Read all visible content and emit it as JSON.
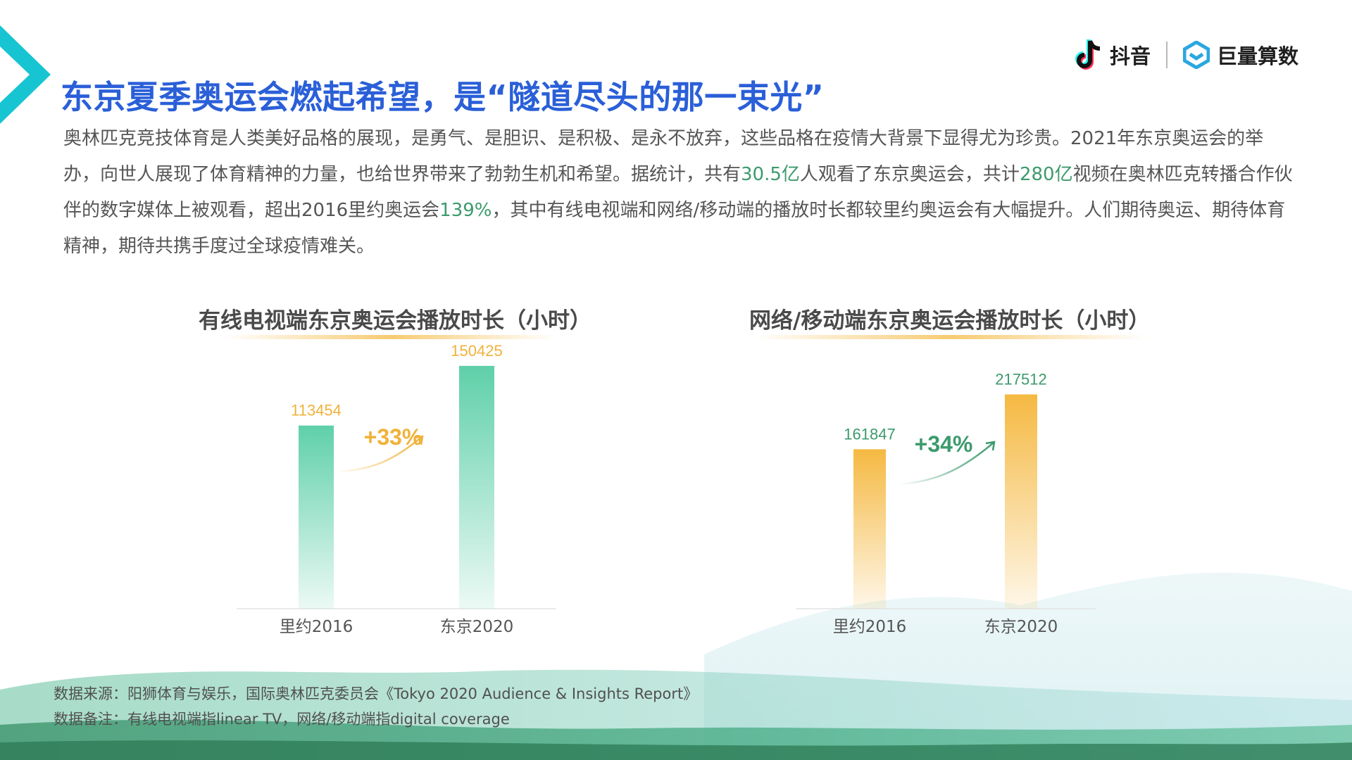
{
  "title": "东京夏季奥运会燃起希望，是“隧道尽头的那一束光”",
  "intro": {
    "p1": "奥林匹克竞技体育是人类美好品格的展现，是勇气、是胆识、是积极、是永不放弃，这些品格在疫情大背景下显得尤为珍贵。2021年东京奥运会的举办，向世人展现了体育精神的力量，也给世界带来了勃勃生机和希望。据统计，共有",
    "h1": "30.5亿",
    "p2": "人观看了东京奥运会，共计",
    "h2": "280亿",
    "p3": "视频在奥林匹克转播合作伙伴的数字媒体上被观看，超出2016里约奥运会",
    "h3": "139%",
    "p4": "，其中有线电视端和网络/移动端的播放时长都较里约奥运会有大幅提升。人们期待奥运、期待体育精神，期待共携手度过全球疫情难关。"
  },
  "logos": {
    "douyin": "抖音",
    "juliang": "巨量算数"
  },
  "colors": {
    "title_blue": "#2a5fd8",
    "green": "#3d9a6c",
    "gold": "#f0b23a",
    "teal": "#17c4d2"
  },
  "chart_data": [
    {
      "type": "bar",
      "title": "有线电视端东京奥运会播放时长（小时）",
      "categories": [
        "里约2016",
        "东京2020"
      ],
      "values": [
        113454,
        150425
      ],
      "value_labels": [
        "113454",
        "150425"
      ],
      "growth_label": "+33%",
      "bar_color": "#5fd0a9",
      "label_color": "#f0b23a",
      "ylim": [
        0,
        170000
      ],
      "grid": false
    },
    {
      "type": "bar",
      "title": "网络/移动端东京奥运会播放时长（小时）",
      "categories": [
        "里约2016",
        "东京2020"
      ],
      "values": [
        161847,
        217512
      ],
      "value_labels": [
        "161847",
        "217512"
      ],
      "growth_label": "+34%",
      "bar_color": "#f5b942",
      "label_color": "#3d9a6c",
      "ylim": [
        0,
        250000
      ],
      "grid": false
    }
  ],
  "footnotes": {
    "source": "数据来源：阳狮体育与娱乐，国际奥林匹克委员会《Tokyo 2020 Audience & Insights Report》",
    "note": "数据备注：有线电视端指linear TV，网络/移动端指digital coverage"
  }
}
